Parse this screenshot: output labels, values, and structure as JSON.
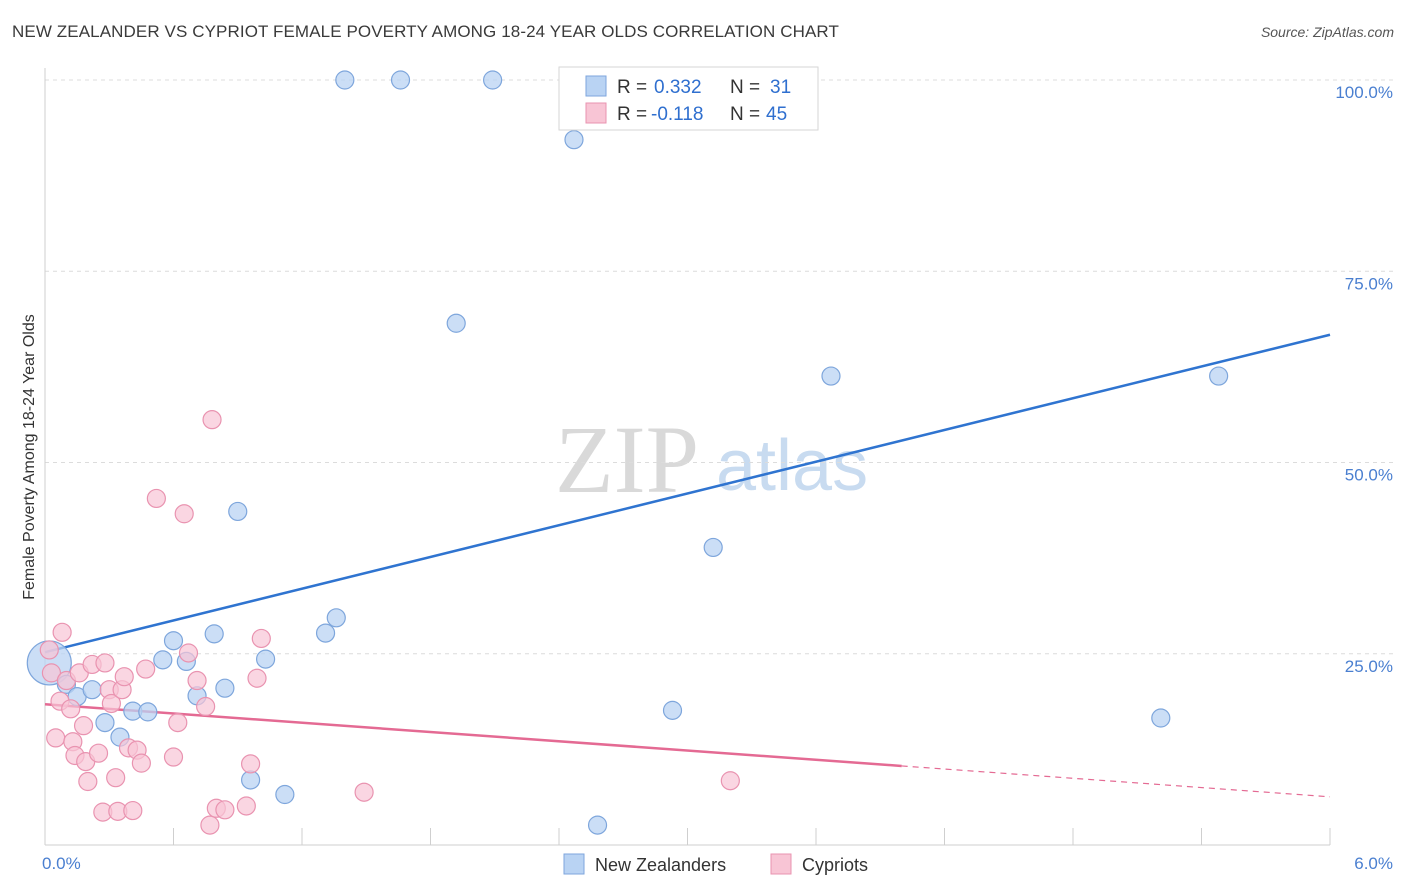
{
  "header": {
    "title": "NEW ZEALANDER VS CYPRIOT FEMALE POVERTY AMONG 18-24 YEAR OLDS CORRELATION CHART",
    "source": "Source: ZipAtlas.com"
  },
  "watermark": {
    "zip": "ZIP",
    "atlas": "atlas"
  },
  "colors": {
    "blue_fill": "#b9d3f3",
    "blue_stroke": "#7ea6dc",
    "blue_line": "#2f74d0",
    "pink_fill": "#f8c5d5",
    "pink_stroke": "#e993b0",
    "pink_line": "#e46a93",
    "grid": "#dcdcdc",
    "axis_text": "#4a7fd0"
  },
  "legend": {
    "rows": [
      {
        "r_label": "R =",
        "r_value": "0.332",
        "n_label": "N =",
        "n_value": "31"
      },
      {
        "r_label": "R =",
        "r_value": "-0.118",
        "n_label": "N =",
        "n_value": "45"
      }
    ]
  },
  "bottom_legend": [
    "New Zealanders",
    "Cypriots"
  ],
  "chart_data": {
    "type": "scatter",
    "title": "NEW ZEALANDER VS CYPRIOT FEMALE POVERTY AMONG 18-24 YEAR OLDS CORRELATION CHART",
    "xlabel": "",
    "ylabel": "Female Poverty Among 18-24 Year Olds",
    "xlim": [
      0,
      6.0
    ],
    "ylim": [
      0,
      105
    ],
    "x_tick_labels": [
      "0.0%",
      "6.0%"
    ],
    "y_ticks": [
      25,
      50,
      75,
      100
    ],
    "y_tick_labels": [
      "25.0%",
      "50.0%",
      "75.0%",
      "100.0%"
    ],
    "grid": true,
    "series": [
      {
        "name": "New Zealanders",
        "r": 0.332,
        "n": 31,
        "trend": {
          "x0": 0,
          "y0": 25.2,
          "x1": 6.0,
          "y1": 66.7,
          "dashed_from": null
        },
        "points": [
          [
            0.02,
            23.8,
            22
          ],
          [
            0.1,
            21,
            9
          ],
          [
            0.15,
            19.4,
            9
          ],
          [
            0.22,
            20.3,
            9
          ],
          [
            0.28,
            16,
            9
          ],
          [
            0.35,
            14.1,
            9
          ],
          [
            0.41,
            17.5,
            9
          ],
          [
            0.48,
            17.4,
            9
          ],
          [
            0.55,
            24.2,
            9
          ],
          [
            0.6,
            26.7,
            9
          ],
          [
            0.66,
            24,
            9
          ],
          [
            0.71,
            19.5,
            9
          ],
          [
            0.79,
            27.6,
            9
          ],
          [
            0.84,
            20.5,
            9
          ],
          [
            0.9,
            43.6,
            9
          ],
          [
            0.96,
            8.5,
            9
          ],
          [
            1.03,
            24.3,
            9
          ],
          [
            1.12,
            6.6,
            9
          ],
          [
            1.31,
            27.7,
            9
          ],
          [
            1.36,
            29.7,
            9
          ],
          [
            1.4,
            100,
            9
          ],
          [
            1.66,
            100,
            9
          ],
          [
            1.92,
            68.2,
            9
          ],
          [
            2.09,
            100,
            9
          ],
          [
            2.47,
            92.2,
            9
          ],
          [
            2.58,
            2.6,
            9
          ],
          [
            2.93,
            17.6,
            9
          ],
          [
            3.12,
            38.9,
            9
          ],
          [
            3.67,
            61.3,
            9
          ],
          [
            5.21,
            16.6,
            9
          ],
          [
            5.48,
            61.3,
            9
          ]
        ]
      },
      {
        "name": "Cypriots",
        "r": -0.118,
        "n": 45,
        "trend": {
          "x0": 0,
          "y0": 18.4,
          "x1": 6.0,
          "y1": 6.3,
          "dashed_from": 4.0
        },
        "points": [
          [
            0.02,
            25.5,
            9
          ],
          [
            0.03,
            22.5,
            9
          ],
          [
            0.05,
            14,
            9
          ],
          [
            0.07,
            18.8,
            9
          ],
          [
            0.08,
            27.8,
            9
          ],
          [
            0.1,
            21.5,
            9
          ],
          [
            0.12,
            17.8,
            9
          ],
          [
            0.13,
            13.5,
            9
          ],
          [
            0.14,
            11.7,
            9
          ],
          [
            0.16,
            22.5,
            9
          ],
          [
            0.18,
            15.6,
            9
          ],
          [
            0.19,
            10.9,
            9
          ],
          [
            0.2,
            8.3,
            9
          ],
          [
            0.22,
            23.6,
            9
          ],
          [
            0.25,
            12,
            9
          ],
          [
            0.27,
            4.3,
            9
          ],
          [
            0.28,
            23.8,
            9
          ],
          [
            0.3,
            20.3,
            9
          ],
          [
            0.31,
            18.5,
            9
          ],
          [
            0.33,
            8.8,
            9
          ],
          [
            0.34,
            4.4,
            9
          ],
          [
            0.36,
            20.3,
            9
          ],
          [
            0.37,
            22,
            9
          ],
          [
            0.39,
            12.7,
            9
          ],
          [
            0.41,
            4.5,
            9
          ],
          [
            0.43,
            12.4,
            9
          ],
          [
            0.45,
            10.7,
            9
          ],
          [
            0.47,
            23,
            9
          ],
          [
            0.52,
            45.3,
            9
          ],
          [
            0.6,
            11.5,
            9
          ],
          [
            0.62,
            16,
            9
          ],
          [
            0.65,
            43.3,
            9
          ],
          [
            0.67,
            25.1,
            9
          ],
          [
            0.71,
            21.5,
            9
          ],
          [
            0.75,
            18.1,
            9
          ],
          [
            0.77,
            2.6,
            9
          ],
          [
            0.78,
            55.6,
            9
          ],
          [
            0.8,
            4.8,
            9
          ],
          [
            0.84,
            4.6,
            9
          ],
          [
            0.94,
            5.1,
            9
          ],
          [
            0.96,
            10.6,
            9
          ],
          [
            0.99,
            21.8,
            9
          ],
          [
            1.01,
            27,
            9
          ],
          [
            1.49,
            6.9,
            9
          ],
          [
            3.2,
            8.4,
            9
          ]
        ]
      }
    ]
  }
}
